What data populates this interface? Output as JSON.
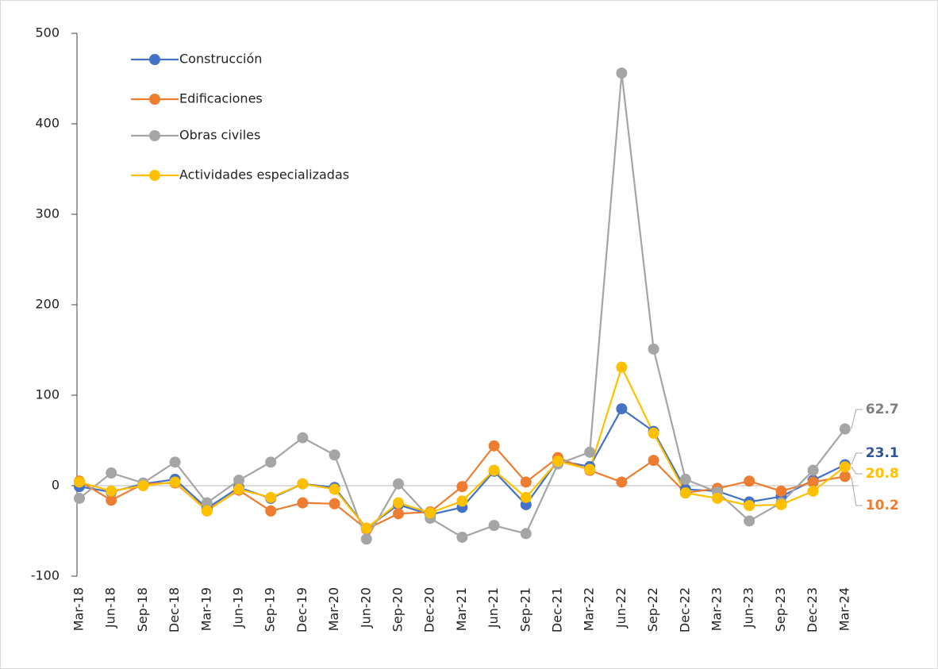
{
  "chart_data": {
    "type": "line",
    "categories": [
      "Mar-18",
      "Jun-18",
      "Sep-18",
      "Dec-18",
      "Mar-19",
      "Jun-19",
      "Sep-19",
      "Dec-19",
      "Mar-20",
      "Jun-20",
      "Sep-20",
      "Dec-20",
      "Mar-21",
      "Jun-21",
      "Sep-21",
      "Dec-21",
      "Mar-22",
      "Jun-22",
      "Sep-22",
      "Dec-22",
      "Mar-23",
      "Jun-23",
      "Sep-23",
      "Dec-23",
      "Mar-24"
    ],
    "series": [
      {
        "name": "Construcción",
        "color": "#4472c4",
        "label_color": "#2f5597",
        "values": [
          -1,
          -7,
          2,
          7,
          -25,
          -2,
          -14,
          2,
          -2,
          -47,
          -21,
          -32,
          -24,
          16,
          -21,
          28,
          21,
          85,
          60,
          -4,
          -6,
          -18,
          -12,
          6,
          23.1
        ]
      },
      {
        "name": "Edificaciones",
        "color": "#ed7d31",
        "label_color": "#ed7d31",
        "values": [
          5,
          -16,
          2,
          3,
          -27,
          -5,
          -28,
          -19,
          -20,
          -48,
          -31,
          -29,
          -1,
          44,
          4,
          31,
          17,
          4,
          28,
          -8,
          -3,
          5,
          -6,
          4,
          10.2
        ]
      },
      {
        "name": "Obras civiles",
        "color": "#a5a5a5",
        "label_color": "#7f7f7f",
        "values": [
          -14,
          14,
          3,
          26,
          -19,
          6,
          26,
          53,
          34,
          -59,
          2,
          -36,
          -57,
          -44,
          -53,
          24,
          37,
          456,
          151,
          7,
          -7,
          -39,
          -19,
          17,
          62.7
        ]
      },
      {
        "name": "Actividades especializadas",
        "color": "#ffc000",
        "label_color": "#ffc000",
        "values": [
          4,
          -6,
          0,
          4,
          -28,
          -4,
          -13,
          2,
          -4,
          -47,
          -19,
          -30,
          -17,
          17,
          -13,
          27,
          18,
          131,
          58,
          -8,
          -14,
          -22,
          -21,
          -6,
          20.8
        ]
      }
    ],
    "ylim": [
      -100,
      500
    ],
    "yticks": [
      -100,
      0,
      100,
      200,
      300,
      400,
      500
    ],
    "zero_line": true
  }
}
